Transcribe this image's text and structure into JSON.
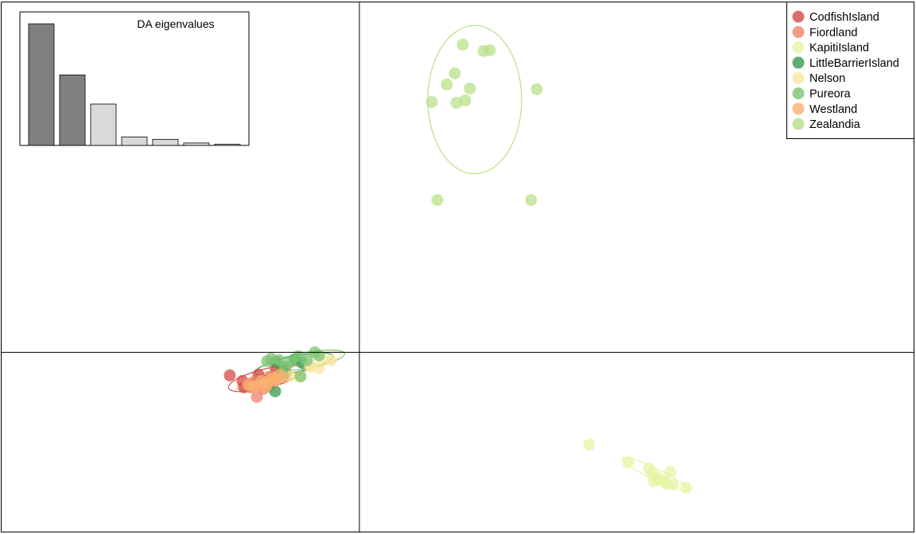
{
  "chart_data": {
    "type": "scatter",
    "title": "",
    "xlabel": "",
    "ylabel": "",
    "grid": false,
    "axes_through_origin": true,
    "xlim": [
      -452,
      700
    ],
    "ylim": [
      -228,
      442
    ],
    "legend": {
      "placement": "top-right",
      "entries": [
        "CodfishIsland",
        "Fiordland",
        "KapitiIsland",
        "LittleBarrierIsland",
        "Nelson",
        "Pureora",
        "Westland",
        "Zealandia"
      ]
    },
    "series": [
      {
        "name": "CodfishIsland",
        "color": "#d44a4a",
        "ellipse": {
          "cx": -118,
          "cy": -33,
          "rx": 48,
          "ry": 12,
          "angle": -14
        },
        "points": [
          [
            -163,
            -29
          ],
          [
            -127,
            -28
          ],
          [
            -147,
            -36
          ],
          [
            -113,
            -32
          ],
          [
            -97,
            -23
          ],
          [
            -105,
            -21
          ],
          [
            -133,
            -40
          ],
          [
            -145,
            -44
          ]
        ]
      },
      {
        "name": "Fiordland",
        "color": "#f0826a",
        "ellipse": {
          "cx": -124,
          "cy": -40,
          "rx": 24,
          "ry": 7,
          "angle": -16
        },
        "points": [
          [
            -129,
            -56
          ],
          [
            -141,
            -40
          ],
          [
            -133,
            -38
          ],
          [
            -93,
            -20
          ],
          [
            -114,
            -43
          ],
          [
            -121,
            -46
          ],
          [
            -137,
            -44
          ],
          [
            -109,
            -38
          ]
        ]
      },
      {
        "name": "KapitiIsland",
        "color": "#e4f4a4",
        "ellipse": {
          "cx": 372,
          "cy": -153,
          "rx": 46,
          "ry": 7,
          "angle": 26
        },
        "points": [
          [
            289,
            -116
          ],
          [
            338,
            -138
          ],
          [
            364,
            -146
          ],
          [
            369,
            -152
          ],
          [
            374,
            -158
          ],
          [
            384,
            -162
          ],
          [
            391,
            -150
          ],
          [
            394,
            -166
          ],
          [
            411,
            -170
          ],
          [
            370,
            -162
          ],
          [
            379,
            -160
          ],
          [
            386,
            -165
          ]
        ]
      },
      {
        "name": "LittleBarrierIsland",
        "color": "#3a9a50",
        "ellipse": {
          "cx": -82,
          "cy": -15,
          "rx": 50,
          "ry": 10,
          "angle": -12
        },
        "points": [
          [
            -106,
            -49
          ],
          [
            -97,
            -22
          ],
          [
            -81,
            -9
          ],
          [
            -72,
            -13
          ],
          [
            -105,
            -12
          ],
          [
            -93,
            -27
          ]
        ]
      },
      {
        "name": "Nelson",
        "color": "#fae6a0",
        "ellipse": {
          "cx": -66,
          "cy": -14,
          "rx": 44,
          "ry": 9,
          "angle": -16
        },
        "points": [
          [
            -36,
            -10
          ],
          [
            -51,
            -20
          ],
          [
            -61,
            -18
          ],
          [
            -75,
            -31
          ],
          [
            -88,
            -30
          ],
          [
            -62,
            -16
          ],
          [
            -45,
            -10
          ]
        ]
      },
      {
        "name": "Pureora",
        "color": "#7cc474",
        "ellipse": {
          "cx": -66,
          "cy": -10,
          "rx": 48,
          "ry": 10,
          "angle": -10
        },
        "points": [
          [
            -111,
            -8
          ],
          [
            -101,
            -10
          ],
          [
            -94,
            -18
          ],
          [
            -86,
            -12
          ],
          [
            -77,
            -5
          ],
          [
            -56,
            0
          ],
          [
            -51,
            -4
          ],
          [
            -74,
            -30
          ],
          [
            -97,
            -28
          ],
          [
            -116,
            -11
          ],
          [
            -66,
            -10
          ]
        ]
      },
      {
        "name": "Westland",
        "color": "#f8b070",
        "ellipse": {
          "cx": -110,
          "cy": -32,
          "rx": 46,
          "ry": 9,
          "angle": -16
        },
        "points": [
          [
            -139,
            -41
          ],
          [
            -129,
            -42
          ],
          [
            -117,
            -39
          ],
          [
            -106,
            -36
          ],
          [
            -96,
            -31
          ],
          [
            -123,
            -36
          ],
          [
            -112,
            -33
          ],
          [
            -100,
            -28
          ],
          [
            -133,
            -43
          ],
          [
            -117,
            -43
          ],
          [
            -108,
            -32
          ]
        ]
      },
      {
        "name": "Zealandia",
        "color": "#b8e088",
        "ellipse": {
          "cx": 145,
          "cy": 317,
          "rx": 59,
          "ry": 93,
          "angle": 0
        },
        "points": [
          [
            130,
            386
          ],
          [
            156,
            378
          ],
          [
            164,
            379
          ],
          [
            120,
            350
          ],
          [
            110,
            336
          ],
          [
            139,
            331
          ],
          [
            91,
            314
          ],
          [
            122,
            313
          ],
          [
            133,
            316
          ],
          [
            223,
            330
          ],
          [
            98,
            191
          ],
          [
            216,
            191
          ]
        ]
      }
    ],
    "inset": {
      "title": "DA eigenvalues",
      "type": "bar",
      "values": [
        100,
        58,
        34,
        7,
        5,
        2,
        1
      ],
      "highlight_count": 2,
      "highlight_color": "#808080",
      "other_color": "#d9d9d9"
    }
  }
}
